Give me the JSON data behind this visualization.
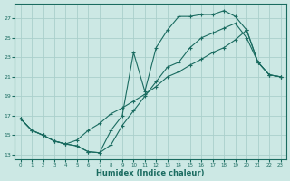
{
  "xlabel": "Humidex (Indice chaleur)",
  "background_color": "#cce8e4",
  "grid_color": "#aacfcb",
  "line_color": "#1a6b60",
  "xlim": [
    -0.5,
    23.5
  ],
  "ylim": [
    12.5,
    28.5
  ],
  "yticks": [
    13,
    15,
    17,
    19,
    21,
    23,
    25,
    27
  ],
  "xticks": [
    0,
    1,
    2,
    3,
    4,
    5,
    6,
    7,
    8,
    9,
    10,
    11,
    12,
    13,
    14,
    15,
    16,
    17,
    18,
    19,
    20,
    21,
    22,
    23
  ],
  "line1_x": [
    0,
    1,
    2,
    3,
    4,
    5,
    6,
    7,
    8,
    9,
    10,
    11,
    12,
    13,
    14,
    15,
    16,
    17,
    18,
    19,
    20,
    21,
    22,
    23
  ],
  "line1_y": [
    16.7,
    15.5,
    15.0,
    14.4,
    14.1,
    13.9,
    13.3,
    13.2,
    14.0,
    16.0,
    17.5,
    19.0,
    20.5,
    22.0,
    22.5,
    24.0,
    25.0,
    25.5,
    26.0,
    26.5,
    25.0,
    22.5,
    21.2,
    21.0
  ],
  "line2_x": [
    0,
    1,
    2,
    3,
    4,
    5,
    6,
    7,
    8,
    9,
    10,
    11,
    12,
    13,
    14,
    15,
    16,
    17,
    18,
    19,
    20,
    21,
    22,
    23
  ],
  "line2_y": [
    16.7,
    15.5,
    15.0,
    14.4,
    14.1,
    13.9,
    13.3,
    13.2,
    15.5,
    17.0,
    23.5,
    19.5,
    24.0,
    25.8,
    27.2,
    27.2,
    27.4,
    27.4,
    27.8,
    27.2,
    25.8,
    22.5,
    21.2,
    21.0
  ],
  "line3_x": [
    0,
    1,
    2,
    3,
    4,
    5,
    6,
    7,
    8,
    9,
    10,
    11,
    12,
    13,
    14,
    15,
    16,
    17,
    18,
    19,
    20,
    21,
    22,
    23
  ],
  "line3_y": [
    16.7,
    15.5,
    15.0,
    14.4,
    14.1,
    14.5,
    15.5,
    16.2,
    17.2,
    17.8,
    18.5,
    19.2,
    20.0,
    21.0,
    21.5,
    22.2,
    22.8,
    23.5,
    24.0,
    24.8,
    25.8,
    22.5,
    21.2,
    21.0
  ]
}
